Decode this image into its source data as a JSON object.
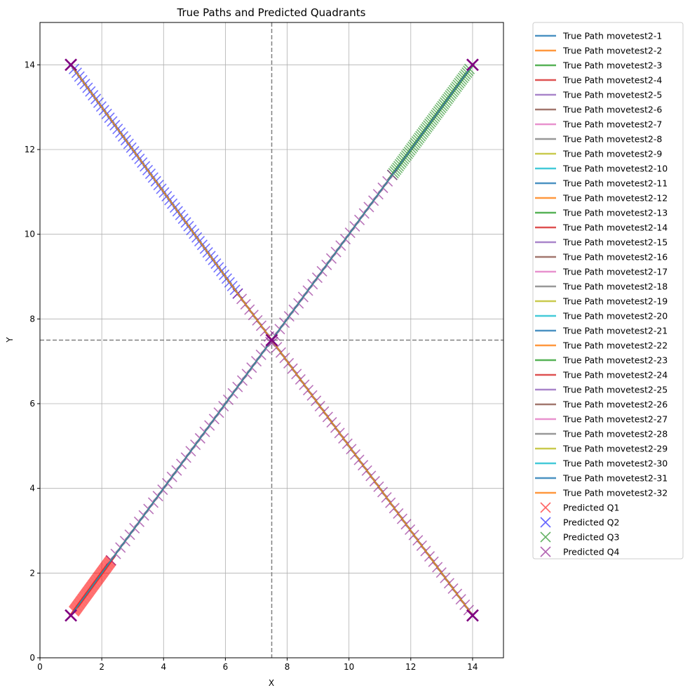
{
  "chart_data": {
    "type": "line",
    "title": "True Paths and Predicted Quadrants",
    "xlabel": "X",
    "ylabel": "Y",
    "xlim": [
      0,
      15
    ],
    "ylim": [
      0,
      15
    ],
    "xticks": [
      0,
      2,
      4,
      6,
      8,
      10,
      12,
      14
    ],
    "yticks": [
      0,
      2,
      4,
      6,
      8,
      10,
      12,
      14
    ],
    "grid": true,
    "legend_placement": "outside-right",
    "quadrant_dividers": {
      "x": 7.5,
      "y": 7.5,
      "color": "#808080",
      "style": "dashed"
    },
    "path_colors": [
      "#1f77b4",
      "#ff7f0e",
      "#2ca02c",
      "#d62728",
      "#9467bd",
      "#8c564b",
      "#e377c2",
      "#7f7f7f",
      "#bcbd22",
      "#17becf"
    ],
    "series": [
      {
        "name": "True Path movetest2-1",
        "x": [
          1,
          14
        ],
        "y": [
          1,
          14
        ]
      },
      {
        "name": "True Path movetest2-2",
        "x": [
          1,
          14
        ],
        "y": [
          14,
          1
        ]
      },
      {
        "name": "True Path movetest2-3",
        "x": [
          1,
          14
        ],
        "y": [
          1,
          14
        ]
      },
      {
        "name": "True Path movetest2-4",
        "x": [
          1,
          14
        ],
        "y": [
          14,
          1
        ]
      },
      {
        "name": "True Path movetest2-5",
        "x": [
          1,
          14
        ],
        "y": [
          1,
          14
        ]
      },
      {
        "name": "True Path movetest2-6",
        "x": [
          1,
          14
        ],
        "y": [
          14,
          1
        ]
      },
      {
        "name": "True Path movetest2-7",
        "x": [
          1,
          14
        ],
        "y": [
          1,
          14
        ]
      },
      {
        "name": "True Path movetest2-8",
        "x": [
          1,
          14
        ],
        "y": [
          14,
          1
        ]
      },
      {
        "name": "True Path movetest2-9",
        "x": [
          1,
          14
        ],
        "y": [
          1,
          14
        ]
      },
      {
        "name": "True Path movetest2-10",
        "x": [
          1,
          14
        ],
        "y": [
          14,
          1
        ]
      },
      {
        "name": "True Path movetest2-11",
        "x": [
          1,
          14
        ],
        "y": [
          1,
          14
        ]
      },
      {
        "name": "True Path movetest2-12",
        "x": [
          1,
          14
        ],
        "y": [
          14,
          1
        ]
      },
      {
        "name": "True Path movetest2-13",
        "x": [
          1,
          14
        ],
        "y": [
          1,
          14
        ]
      },
      {
        "name": "True Path movetest2-14",
        "x": [
          1,
          14
        ],
        "y": [
          14,
          1
        ]
      },
      {
        "name": "True Path movetest2-15",
        "x": [
          1,
          14
        ],
        "y": [
          1,
          14
        ]
      },
      {
        "name": "True Path movetest2-16",
        "x": [
          1,
          14
        ],
        "y": [
          14,
          1
        ]
      },
      {
        "name": "True Path movetest2-17",
        "x": [
          1,
          14
        ],
        "y": [
          1,
          14
        ]
      },
      {
        "name": "True Path movetest2-18",
        "x": [
          1,
          14
        ],
        "y": [
          14,
          1
        ]
      },
      {
        "name": "True Path movetest2-19",
        "x": [
          1,
          14
        ],
        "y": [
          1,
          14
        ]
      },
      {
        "name": "True Path movetest2-20",
        "x": [
          1,
          14
        ],
        "y": [
          14,
          1
        ]
      },
      {
        "name": "True Path movetest2-21",
        "x": [
          1,
          14
        ],
        "y": [
          1,
          14
        ]
      },
      {
        "name": "True Path movetest2-22",
        "x": [
          1,
          14
        ],
        "y": [
          14,
          1
        ]
      },
      {
        "name": "True Path movetest2-23",
        "x": [
          1,
          14
        ],
        "y": [
          1,
          14
        ]
      },
      {
        "name": "True Path movetest2-24",
        "x": [
          1,
          14
        ],
        "y": [
          14,
          1
        ]
      },
      {
        "name": "True Path movetest2-25",
        "x": [
          1,
          14
        ],
        "y": [
          1,
          14
        ]
      },
      {
        "name": "True Path movetest2-26",
        "x": [
          1,
          14
        ],
        "y": [
          14,
          1
        ]
      },
      {
        "name": "True Path movetest2-27",
        "x": [
          1,
          14
        ],
        "y": [
          1,
          14
        ]
      },
      {
        "name": "True Path movetest2-28",
        "x": [
          1,
          14
        ],
        "y": [
          14,
          1
        ]
      },
      {
        "name": "True Path movetest2-29",
        "x": [
          1,
          14
        ],
        "y": [
          1,
          14
        ]
      },
      {
        "name": "True Path movetest2-30",
        "x": [
          1,
          14
        ],
        "y": [
          14,
          1
        ]
      },
      {
        "name": "True Path movetest2-31",
        "x": [
          1,
          14
        ],
        "y": [
          1,
          14
        ]
      },
      {
        "name": "True Path movetest2-32",
        "x": [
          1,
          14
        ],
        "y": [
          14,
          1
        ]
      }
    ],
    "predicted": [
      {
        "name": "Predicted Q1",
        "color": "#ff0000",
        "segments": [
          {
            "x": [
              1.1,
              2.3
            ],
            "y": [
              1.1,
              2.3
            ]
          }
        ]
      },
      {
        "name": "Predicted Q2",
        "color": "#0000ff",
        "segments": [
          {
            "x": [
              1.1,
              6.4
            ],
            "y": [
              13.9,
              8.6
            ]
          }
        ]
      },
      {
        "name": "Predicted Q3",
        "color": "#008000",
        "segments": [
          {
            "x": [
              11.4,
              13.9
            ],
            "y": [
              11.4,
              13.9
            ]
          }
        ]
      },
      {
        "name": "Predicted Q4",
        "color": "#800080",
        "segments": [
          {
            "x": [
              2.3,
              11.4
            ],
            "y": [
              2.3,
              11.4
            ]
          },
          {
            "x": [
              6.4,
              14
            ],
            "y": [
              8.6,
              1
            ]
          }
        ]
      }
    ],
    "endpoint_markers": [
      {
        "x": 1,
        "y": 1
      },
      {
        "x": 1,
        "y": 14
      },
      {
        "x": 14,
        "y": 1
      },
      {
        "x": 14,
        "y": 14
      },
      {
        "x": 7.5,
        "y": 7.5
      }
    ]
  }
}
